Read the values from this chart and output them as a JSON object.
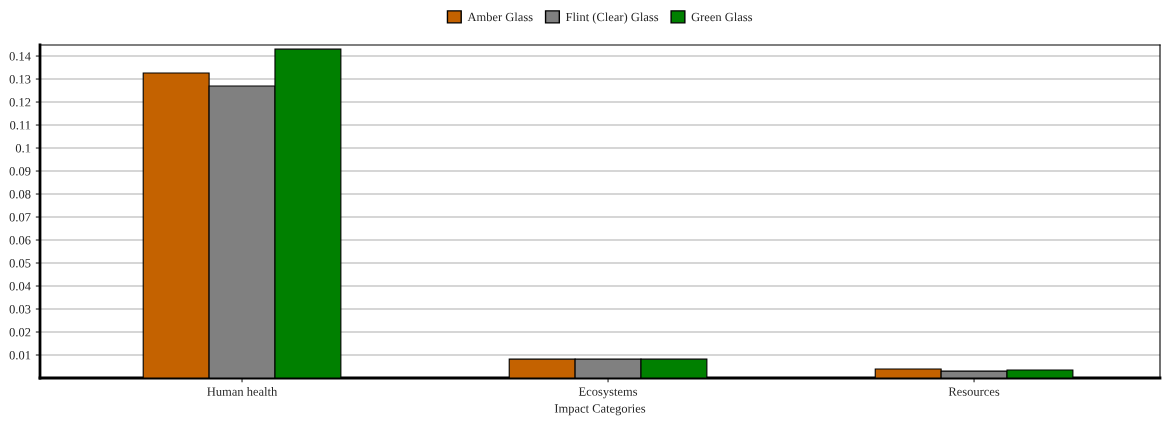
{
  "chart_data": {
    "type": "bar",
    "xlabel": "Impact Categories",
    "categories": [
      "Human health",
      "Ecosystems",
      "Resources"
    ],
    "series": [
      {
        "name": "Amber Glass",
        "color": "#c46200",
        "values": [
          0.1326,
          0.0082,
          0.0039
        ]
      },
      {
        "name": "Flint (Clear) Glass",
        "color": "#808080",
        "values": [
          0.127,
          0.0082,
          0.003
        ]
      },
      {
        "name": "Green Glass",
        "color": "#008000",
        "values": [
          0.143,
          0.0082,
          0.0035
        ]
      }
    ],
    "ylim": [
      0,
      0.1448
    ],
    "yticks": [
      0.01,
      0.02,
      0.03,
      0.04,
      0.05,
      0.06,
      0.07,
      0.08,
      0.09,
      0.1,
      0.11,
      0.12,
      0.13,
      0.14
    ],
    "grid": "y",
    "legend": "top"
  }
}
